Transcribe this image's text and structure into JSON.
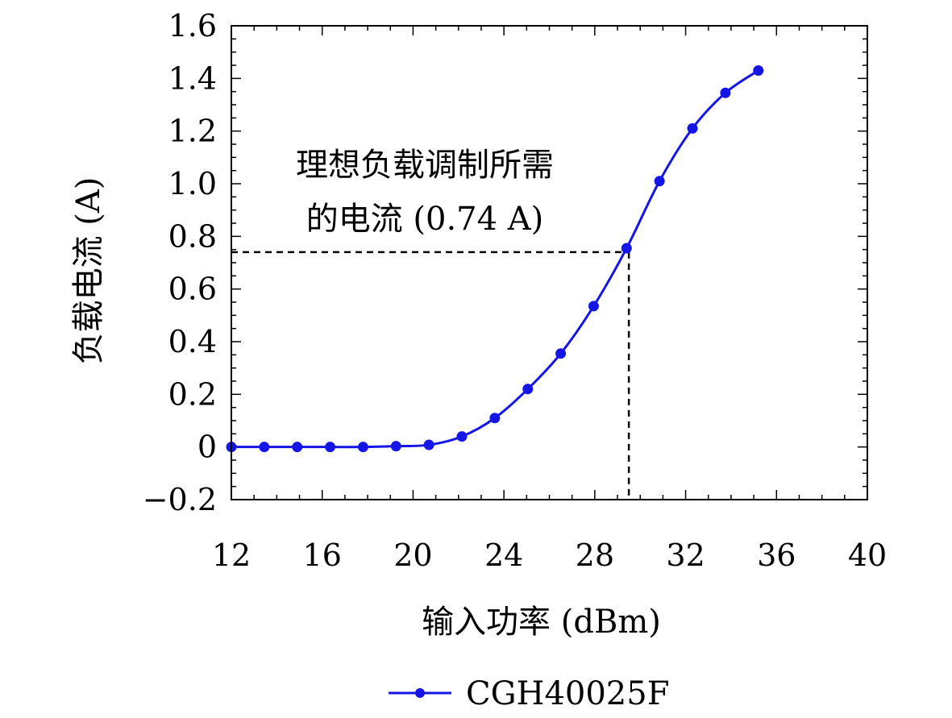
{
  "chart_data": {
    "type": "line",
    "xlabel": "输入功率 (dBm)",
    "ylabel": "负载电流 (A)",
    "xlim": [
      12,
      40
    ],
    "ylim": [
      -0.2,
      1.6
    ],
    "x_ticks": [
      "12",
      "16",
      "20",
      "24",
      "28",
      "32",
      "36",
      "40"
    ],
    "y_ticks": [
      "−0.2",
      "0",
      "0.2",
      "0.4",
      "0.6",
      "0.8",
      "1.0",
      "1.2",
      "1.4",
      "1.6"
    ],
    "grid": false,
    "legend_position": "bottom-center",
    "series": [
      {
        "name": "CGH40025F",
        "color": "#1515e6",
        "marker": "circle",
        "x": [
          12,
          13.45,
          14.9,
          16.35,
          17.8,
          19.25,
          20.7,
          22.15,
          23.6,
          25.05,
          26.5,
          27.95,
          29.4,
          30.85,
          32.3,
          33.75,
          35.2
        ],
        "y": [
          0.0,
          0.0,
          0.0,
          0.0,
          0.0,
          0.003,
          0.008,
          0.04,
          0.11,
          0.22,
          0.355,
          0.535,
          0.755,
          1.01,
          1.21,
          1.345,
          1.43
        ]
      }
    ],
    "annotations": [
      {
        "lines": [
          "理想负载调制所需",
          "的电流 (0.74 A)"
        ],
        "x": 29.5,
        "y": 0.74
      }
    ]
  }
}
